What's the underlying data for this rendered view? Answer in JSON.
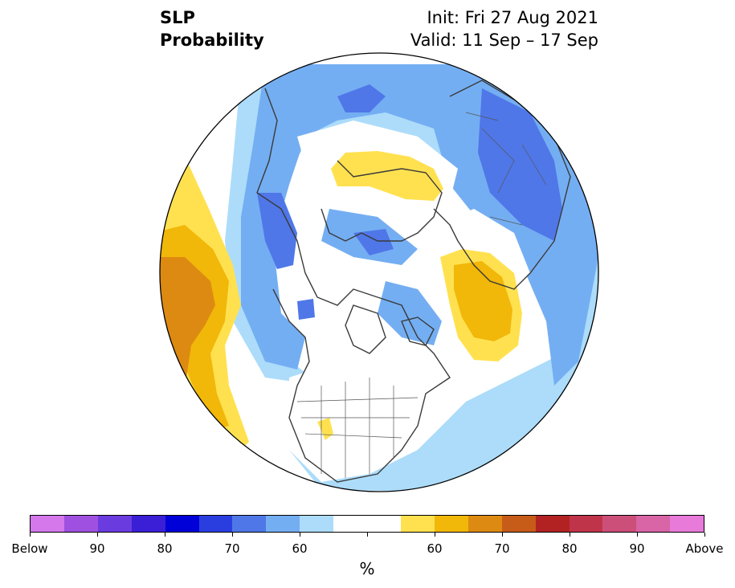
{
  "title": {
    "line1": "SLP",
    "line2": "Probability"
  },
  "info": {
    "init": "Init: Fri 27 Aug 2021",
    "valid": "Valid: 11 Sep – 17 Sep"
  },
  "map": {
    "projection": "north-polar-stereographic",
    "features": [
      "below-normal-blue-regions",
      "above-normal-yellow-orange-regions",
      "coastlines",
      "country-borders",
      "us-state-borders"
    ]
  },
  "colorbar": {
    "colors": [
      "#d478ec",
      "#a050e0",
      "#6a3cdf",
      "#3a1fd6",
      "#0000d8",
      "#2a3ee0",
      "#4f77e8",
      "#74aef2",
      "#acdcfa",
      "#ffffff",
      "#ffffff",
      "#ffe14f",
      "#f1b709",
      "#dd8a12",
      "#c75b18",
      "#b22222",
      "#c0344a",
      "#cc4f7a",
      "#d964a6",
      "#e87ada"
    ],
    "tick_labels": [
      "Below",
      "90",
      "80",
      "70",
      "60",
      "",
      "60",
      "70",
      "80",
      "90",
      "Above"
    ],
    "units": "%"
  }
}
